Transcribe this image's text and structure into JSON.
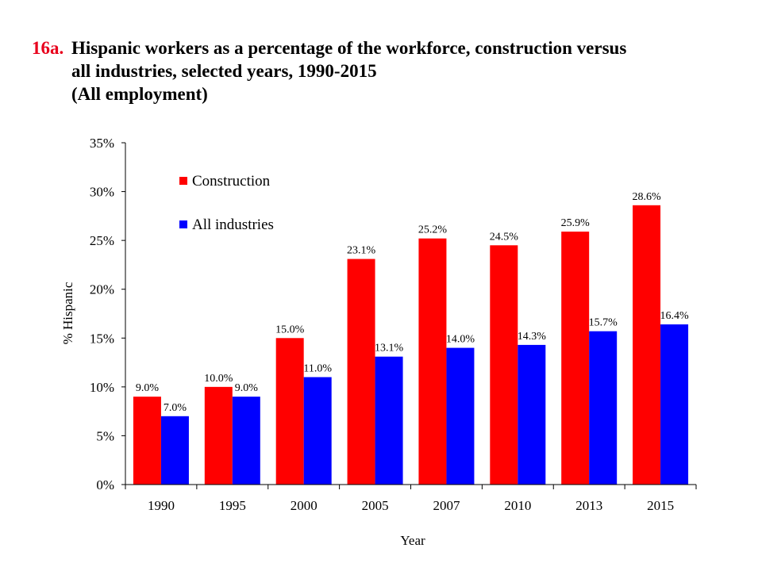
{
  "title": {
    "number": "16a.",
    "line1": "Hispanic workers as a percentage of the workforce, construction versus",
    "line2": "all industries, selected years, 1990-2015",
    "line3": "(All employment)"
  },
  "chart_data": {
    "type": "bar",
    "categories": [
      "1990",
      "1995",
      "2000",
      "2005",
      "2007",
      "2010",
      "2013",
      "2015"
    ],
    "series": [
      {
        "name": "Construction",
        "color": "#ff0000",
        "values": [
          9.0,
          10.0,
          15.0,
          23.1,
          25.2,
          24.5,
          25.9,
          28.6
        ]
      },
      {
        "name": "All industries",
        "color": "#0000ff",
        "values": [
          7.0,
          9.0,
          11.0,
          13.1,
          14.0,
          14.3,
          15.7,
          16.4
        ]
      }
    ],
    "xlabel": "Year",
    "ylabel": "% Hispanic",
    "ylim": [
      0,
      35
    ],
    "yticks": [
      "0%",
      "5%",
      "10%",
      "15%",
      "20%",
      "25%",
      "30%",
      "35%"
    ],
    "data_labels": {
      "Construction": [
        "9.0%",
        "10.0%",
        "15.0%",
        "23.1%",
        "25.2%",
        "24.5%",
        "25.9%",
        "28.6%"
      ],
      "All industries": [
        "7.0%",
        "9.0%",
        "11.0%",
        "13.1%",
        "14.0%",
        "14.3%",
        "15.7%",
        "16.4%"
      ]
    },
    "grid": false,
    "legend_position": "top-left"
  }
}
